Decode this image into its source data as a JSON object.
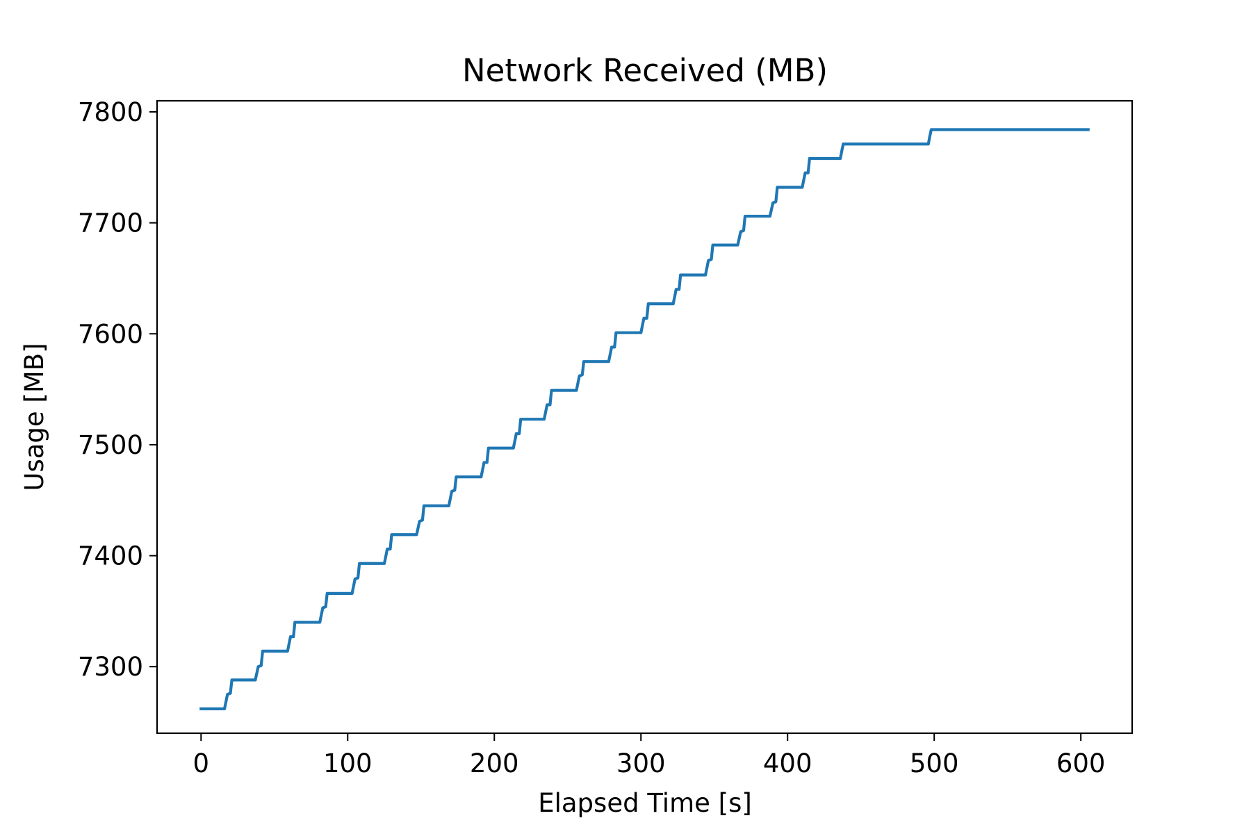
{
  "chart_data": {
    "type": "line",
    "title": "Network Received (MB)",
    "xlabel": "Elapsed Time [s]",
    "ylabel": "Usage [MB]",
    "xlim": [
      -30,
      635
    ],
    "ylim": [
      7240,
      7810
    ],
    "xticks": [
      0,
      100,
      200,
      300,
      400,
      500,
      600
    ],
    "yticks": [
      7300,
      7400,
      7500,
      7600,
      7700,
      7800
    ],
    "grid": false,
    "legend": "none",
    "colors": {
      "line": "#1f77b4",
      "axes": "#000000",
      "background": "#ffffff"
    },
    "series": [
      {
        "x": [
          0,
          16,
          18,
          20,
          21,
          37,
          39,
          41,
          42,
          59,
          61,
          63,
          64,
          81,
          83,
          85,
          86,
          103,
          105,
          107,
          108,
          125,
          127,
          129,
          130,
          147,
          149,
          151,
          152,
          169,
          171,
          173,
          174,
          191,
          193,
          195,
          196,
          213,
          215,
          217,
          218,
          234,
          236,
          238,
          239,
          256,
          258,
          260,
          261,
          278,
          280,
          282,
          283,
          300,
          302,
          304,
          305,
          322,
          324,
          326,
          327,
          344,
          346,
          348,
          349,
          366,
          368,
          370,
          371,
          388,
          390,
          392,
          393,
          410,
          412,
          414,
          415,
          436,
          437,
          438,
          496,
          497,
          498,
          605
        ],
        "y": [
          7262,
          7262,
          7275,
          7276,
          7288,
          7288,
          7300,
          7301,
          7314,
          7314,
          7327,
          7327,
          7340,
          7340,
          7353,
          7354,
          7366,
          7366,
          7379,
          7380,
          7393,
          7393,
          7406,
          7406,
          7419,
          7419,
          7431,
          7432,
          7445,
          7445,
          7458,
          7459,
          7471,
          7471,
          7484,
          7484,
          7497,
          7497,
          7510,
          7510,
          7523,
          7523,
          7536,
          7536,
          7549,
          7549,
          7562,
          7563,
          7575,
          7575,
          7588,
          7588,
          7601,
          7601,
          7614,
          7614,
          7627,
          7627,
          7640,
          7640,
          7653,
          7653,
          7666,
          7667,
          7680,
          7680,
          7692,
          7693,
          7706,
          7706,
          7718,
          7719,
          7732,
          7732,
          7745,
          7745,
          7758,
          7758,
          7765,
          7771,
          7771,
          7778,
          7784,
          7784
        ]
      }
    ]
  }
}
